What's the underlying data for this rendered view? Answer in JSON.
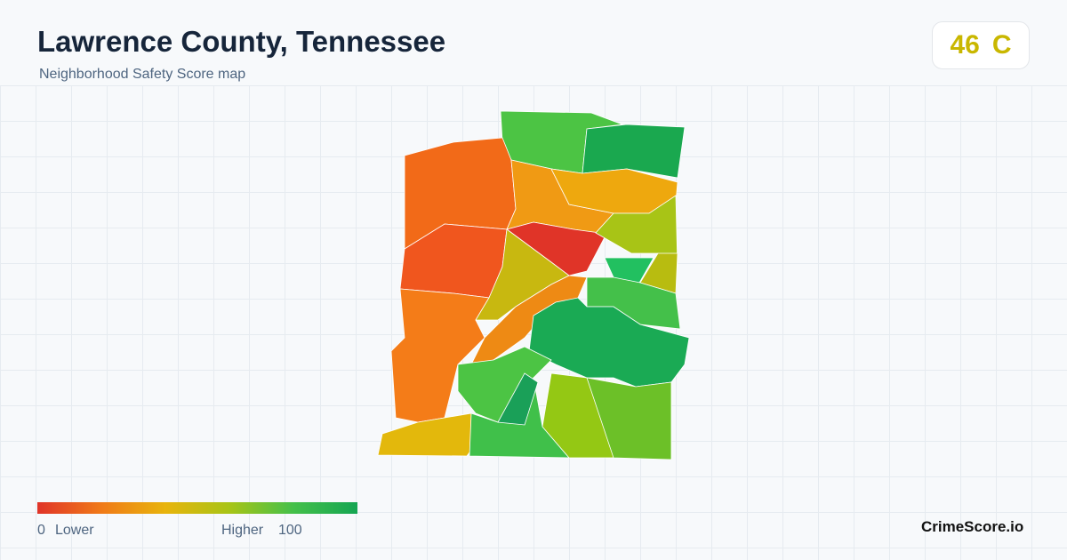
{
  "header": {
    "title": "Lawrence County, Tennessee",
    "subtitle": "Neighborhood Safety Score map"
  },
  "score": {
    "value": 46,
    "grade": "C"
  },
  "legend": {
    "min": 0,
    "min_label": "Lower",
    "max_label": "Higher",
    "max": 100
  },
  "brand": "CrimeScore.io"
}
